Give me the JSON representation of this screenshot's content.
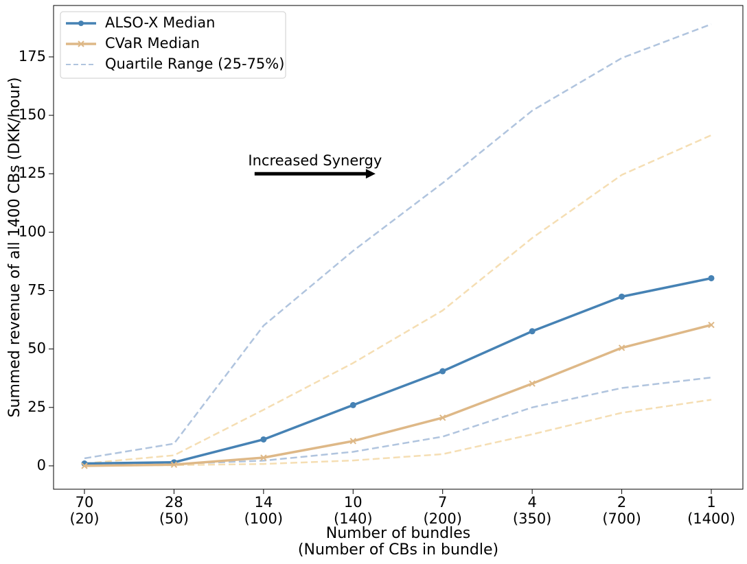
{
  "chart_data": {
    "type": "line",
    "categories": [
      "70\n(20)",
      "28\n(50)",
      "14\n(100)",
      "10\n(140)",
      "7\n(200)",
      "4\n(350)",
      "2\n(700)",
      "1\n(1400)"
    ],
    "xlabel": "Number of bundles\n(Number of CBs in bundle)",
    "ylabel": "Summed revenue of all 1400 CBs (DKK/hour)",
    "ylim": [
      -10,
      197
    ],
    "yticks": [
      0,
      25,
      50,
      75,
      100,
      125,
      150,
      175
    ],
    "grid": false,
    "legend_position": "top-left",
    "legend": [
      {
        "label": "ALSO-X Median",
        "color": "#4682b4",
        "style": "solid",
        "marker": "circle"
      },
      {
        "label": "CVaR Median",
        "color": "#deb887",
        "style": "solid",
        "marker": "x"
      },
      {
        "label": "Quartile Range (25-75%)",
        "color": "#b0c4de",
        "style": "dashed",
        "marker": "none"
      }
    ],
    "series": [
      {
        "name": "ALSO-X Median",
        "kind": "median",
        "color": "#4682b4",
        "values": [
          1,
          1.5,
          11.3,
          26,
          40.5,
          57.6,
          72.4,
          80.3
        ]
      },
      {
        "name": "CVaR Median",
        "kind": "median",
        "color": "#deb887",
        "values": [
          0,
          0.5,
          3.5,
          10.6,
          20.6,
          35.2,
          50.5,
          60.3
        ]
      },
      {
        "kind": "quartile",
        "color": "#b0c4de",
        "values": [
          3.2,
          9.5,
          60,
          92,
          121,
          152,
          174.5,
          189
        ]
      },
      {
        "kind": "quartile",
        "color": "#b0c4de",
        "values": [
          0.3,
          0.8,
          2.2,
          6,
          12.5,
          25,
          33.3,
          37.8
        ]
      },
      {
        "kind": "quartile",
        "color": "#f5deb3",
        "values": [
          1,
          4.5,
          24,
          44,
          66.5,
          97.5,
          124.5,
          141.5
        ]
      },
      {
        "kind": "quartile",
        "color": "#f5deb3",
        "values": [
          0,
          0.3,
          0.8,
          2.3,
          5,
          13.5,
          22.7,
          28.3
        ]
      }
    ],
    "annotations": [
      {
        "text": "Increased Synergy",
        "x_from": 1.9,
        "x_to": 3.25,
        "y": 125
      }
    ]
  }
}
